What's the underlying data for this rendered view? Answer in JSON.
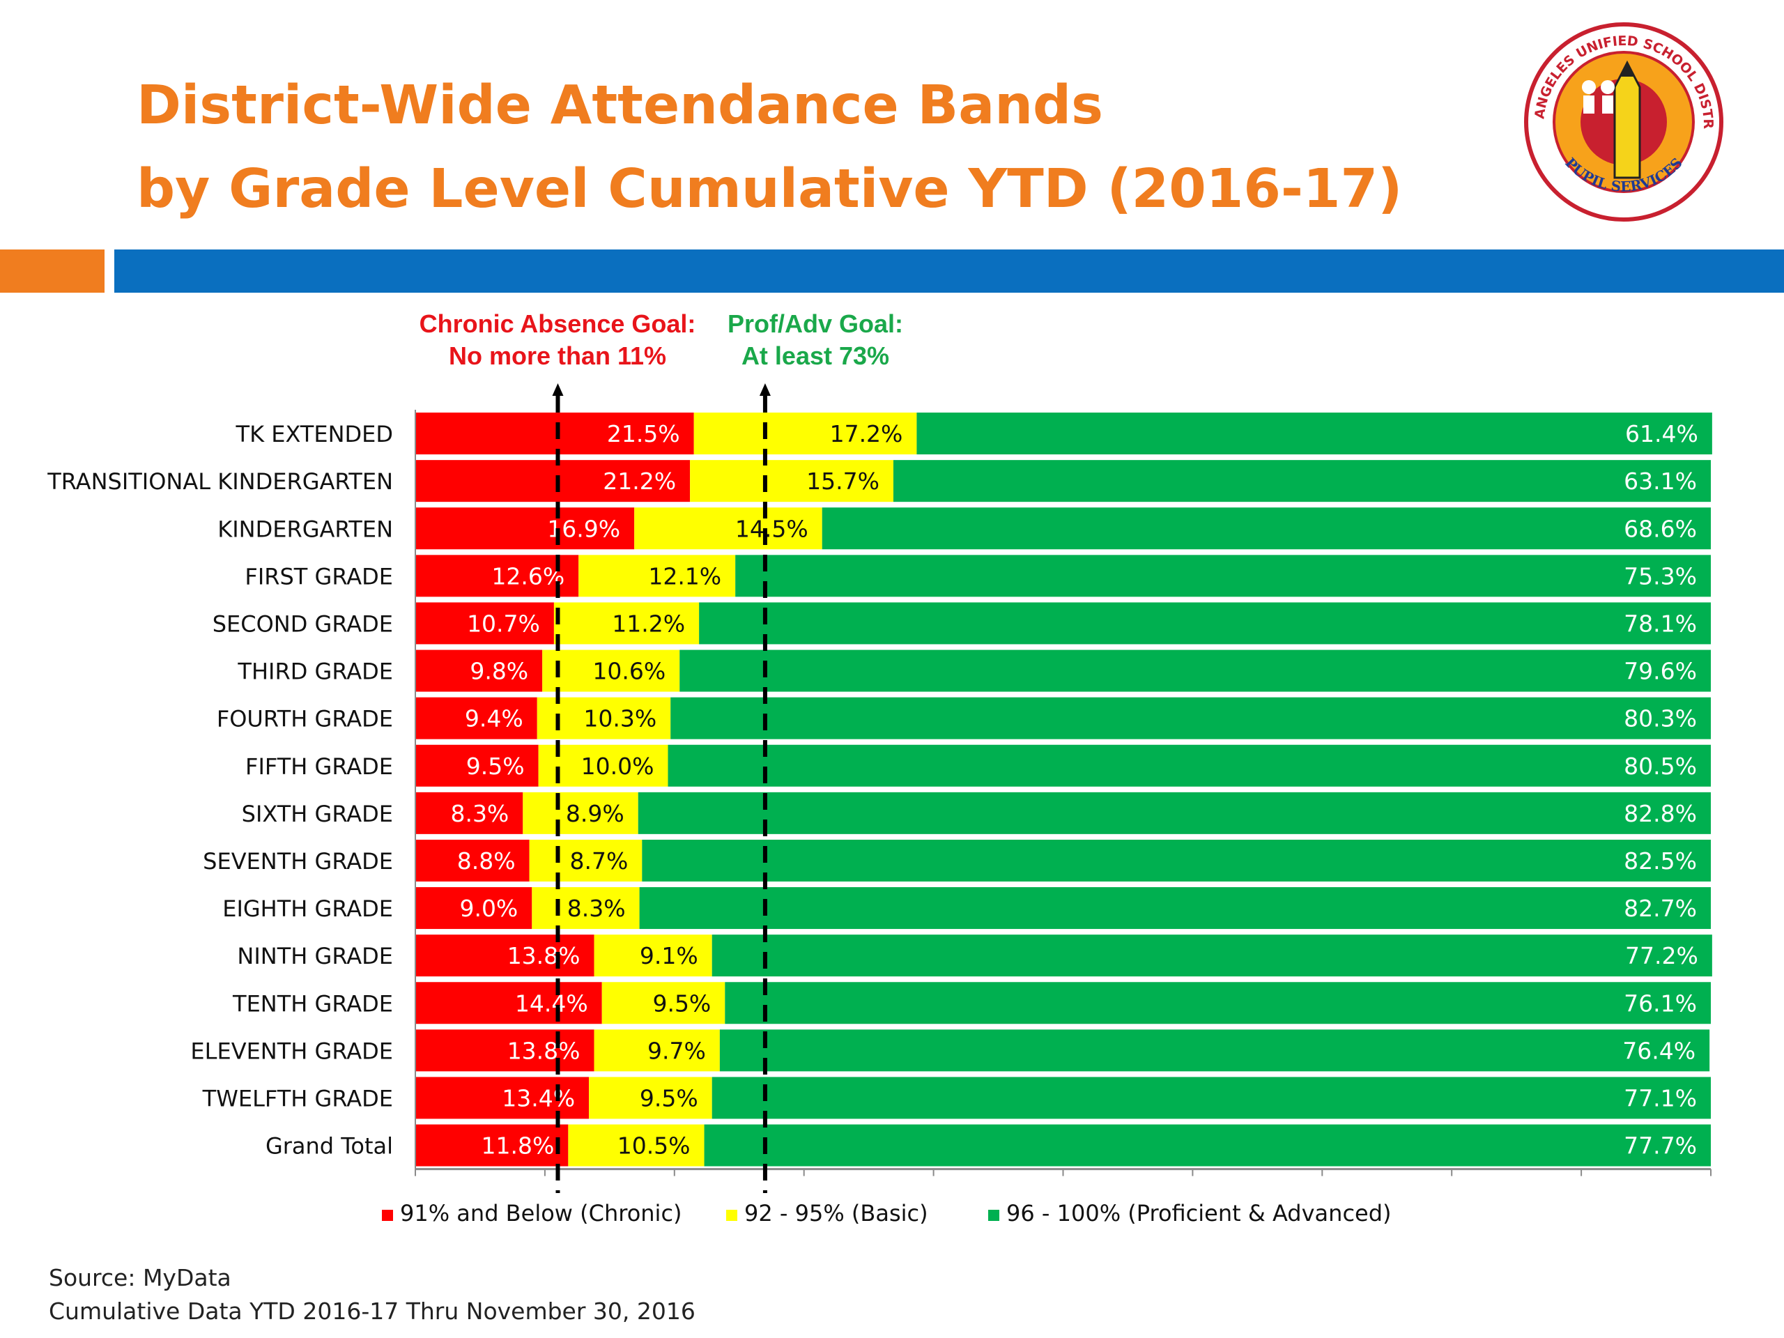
{
  "title_line1": "District-Wide Attendance Bands",
  "title_line2": "by Grade Level Cumulative YTD (2016-17)",
  "logo": {
    "ring_text": "LOS ANGELES UNIFIED SCHOOL DISTRICT",
    "bottom_text": "PUPIL SERVICES"
  },
  "goals": {
    "chronic_line1": "Chronic Absence Goal:",
    "chronic_line2": "No more than 11%",
    "prof_line1": "Prof/Adv Goal:",
    "prof_line2": "At least 73%"
  },
  "source_line1": "Source: MyData",
  "source_line2": "Cumulative Data  YTD 2016-17 Thru November 30, 2016",
  "chart_data": {
    "type": "bar",
    "orientation": "horizontal",
    "stacked": true,
    "categories": [
      "TK EXTENDED",
      "TRANSITIONAL KINDERGARTEN",
      "KINDERGARTEN",
      "FIRST GRADE",
      "SECOND GRADE",
      "THIRD GRADE",
      "FOURTH GRADE",
      "FIFTH GRADE",
      "SIXTH GRADE",
      "SEVENTH GRADE",
      "EIGHTH GRADE",
      "NINTH GRADE",
      "TENTH GRADE",
      "ELEVENTH GRADE",
      "TWELFTH GRADE",
      "Grand Total"
    ],
    "series": [
      {
        "name": "91% and Below (Chronic)",
        "color": "#ff0000",
        "values": [
          21.5,
          21.2,
          16.9,
          12.6,
          10.7,
          9.8,
          9.4,
          9.5,
          8.3,
          8.8,
          9.0,
          13.8,
          14.4,
          13.8,
          13.4,
          11.8
        ],
        "labels": [
          "21.5%",
          "21.2%",
          "16.9%",
          "12.6%",
          "10.7%",
          "9.8%",
          "9.4%",
          "9.5%",
          "8.3%",
          "8.8%",
          "9.0%",
          "13.8%",
          "14.4%",
          "13.8%",
          "13.4%",
          "11.8%"
        ]
      },
      {
        "name": "92 - 95% (Basic)",
        "color": "#ffff00",
        "values": [
          17.2,
          15.7,
          14.5,
          12.1,
          11.2,
          10.6,
          10.3,
          10.0,
          8.9,
          8.7,
          8.3,
          9.1,
          9.5,
          9.7,
          9.5,
          10.5
        ],
        "labels": [
          "17.2%",
          "15.7%",
          "14.5%",
          "12.1%",
          "11.2%",
          "10.6%",
          "10.3%",
          "10.0%",
          "8.9%",
          "8.7%",
          "8.3%",
          "9.1%",
          "9.5%",
          "9.7%",
          "9.5%",
          "10.5%"
        ]
      },
      {
        "name": "96 - 100% (Proficient & Advanced)",
        "color": "#00b050",
        "values": [
          61.4,
          63.1,
          68.6,
          75.3,
          78.1,
          79.6,
          80.3,
          80.5,
          82.8,
          82.5,
          82.7,
          77.2,
          76.1,
          76.4,
          77.1,
          77.7
        ],
        "labels": [
          "61.4%",
          "63.1%",
          "68.6%",
          "75.3%",
          "78.1%",
          "79.6%",
          "80.3%",
          "80.5%",
          "82.8%",
          "82.5%",
          "82.7%",
          "77.2%",
          "76.1%",
          "76.4%",
          "77.1%",
          "77.7%"
        ]
      }
    ],
    "xlim": [
      0,
      100
    ],
    "goal_lines": [
      11,
      27
    ],
    "grid": false,
    "legend": "bottom"
  }
}
